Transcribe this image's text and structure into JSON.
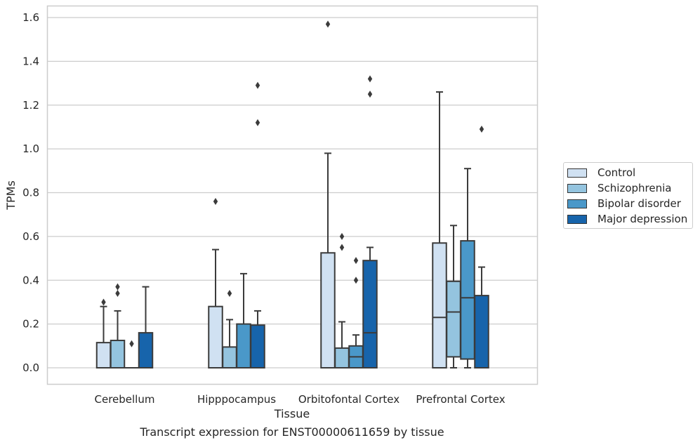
{
  "chart_data": {
    "type": "box",
    "title": "",
    "caption": "Transcript expression for ENST00000611659 by tissue",
    "xlabel": "Tissue",
    "ylabel": "TPMs",
    "ylim": [
      -0.075,
      1.65
    ],
    "yticks": [
      0.0,
      0.2,
      0.4,
      0.6,
      0.8,
      1.0,
      1.2,
      1.4,
      1.6
    ],
    "ytick_labels": [
      "0.0",
      "0.2",
      "0.4",
      "0.6",
      "0.8",
      "1.0",
      "1.2",
      "1.4",
      "1.6"
    ],
    "grid": "horizontal",
    "legend_position": "right",
    "categories": [
      "Cerebellum",
      "Hipppocampus",
      "Orbitofontal Cortex",
      "Prefrontal Cortex"
    ],
    "series": [
      {
        "name": "Control",
        "color": "#d0e1f2",
        "boxes": [
          {
            "q1": 0.0,
            "median": 0.0,
            "q3": 0.115,
            "whisker_low": 0.0,
            "whisker_high": 0.28,
            "outliers": [
              0.3
            ]
          },
          {
            "q1": 0.0,
            "median": 0.0,
            "q3": 0.28,
            "whisker_low": 0.0,
            "whisker_high": 0.54,
            "outliers": [
              0.76
            ]
          },
          {
            "q1": 0.0,
            "median": 0.0,
            "q3": 0.525,
            "whisker_low": 0.0,
            "whisker_high": 0.98,
            "outliers": [
              1.57
            ]
          },
          {
            "q1": 0.0,
            "median": 0.23,
            "q3": 0.57,
            "whisker_low": 0.0,
            "whisker_high": 1.26,
            "outliers": []
          }
        ]
      },
      {
        "name": "Schizophrenia",
        "color": "#94c4df",
        "boxes": [
          {
            "q1": 0.0,
            "median": 0.0,
            "q3": 0.125,
            "whisker_low": 0.0,
            "whisker_high": 0.26,
            "outliers": [
              0.34,
              0.37
            ]
          },
          {
            "q1": 0.0,
            "median": 0.0,
            "q3": 0.095,
            "whisker_low": 0.0,
            "whisker_high": 0.22,
            "outliers": [
              0.34
            ]
          },
          {
            "q1": 0.0,
            "median": 0.0,
            "q3": 0.09,
            "whisker_low": 0.0,
            "whisker_high": 0.21,
            "outliers": [
              0.55,
              0.6
            ]
          },
          {
            "q1": 0.05,
            "median": 0.255,
            "q3": 0.395,
            "whisker_low": 0.0,
            "whisker_high": 0.65,
            "outliers": []
          }
        ]
      },
      {
        "name": "Bipolar disorder",
        "color": "#4a98c9",
        "boxes": [
          {
            "q1": 0.0,
            "median": 0.0,
            "q3": 0.0,
            "whisker_low": 0.0,
            "whisker_high": 0.0,
            "outliers": [
              0.11
            ]
          },
          {
            "q1": 0.0,
            "median": 0.0,
            "q3": 0.2,
            "whisker_low": 0.0,
            "whisker_high": 0.43,
            "outliers": []
          },
          {
            "q1": 0.0,
            "median": 0.05,
            "q3": 0.1,
            "whisker_low": 0.0,
            "whisker_high": 0.15,
            "outliers": [
              0.4,
              0.49
            ]
          },
          {
            "q1": 0.04,
            "median": 0.32,
            "q3": 0.58,
            "whisker_low": 0.0,
            "whisker_high": 0.91,
            "outliers": []
          }
        ]
      },
      {
        "name": "Major depression",
        "color": "#1764ab",
        "boxes": [
          {
            "q1": 0.0,
            "median": 0.0,
            "q3": 0.16,
            "whisker_low": 0.0,
            "whisker_high": 0.37,
            "outliers": []
          },
          {
            "q1": 0.0,
            "median": 0.0,
            "q3": 0.195,
            "whisker_low": 0.0,
            "whisker_high": 0.26,
            "outliers": [
              1.12,
              1.29
            ]
          },
          {
            "q1": 0.0,
            "median": 0.16,
            "q3": 0.49,
            "whisker_low": 0.0,
            "whisker_high": 0.55,
            "outliers": [
              1.25,
              1.32
            ]
          },
          {
            "q1": 0.0,
            "median": 0.0,
            "q3": 0.33,
            "whisker_low": 0.0,
            "whisker_high": 0.46,
            "outliers": [
              1.09
            ]
          }
        ]
      }
    ]
  }
}
